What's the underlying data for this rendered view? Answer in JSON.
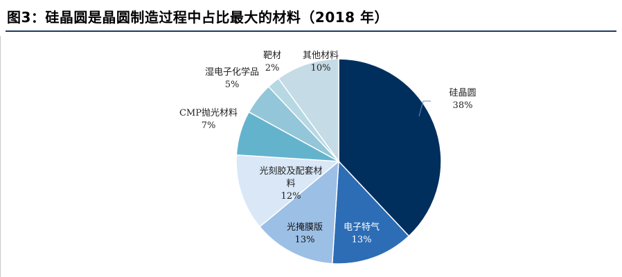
{
  "title": "图3：硅晶圆是晶圆制造过程中占比最大的材料（2018 年）",
  "chart_data": {
    "type": "pie",
    "title": "图3：硅晶圆是晶圆制造过程中占比最大的材料（2018 年）",
    "slices": [
      {
        "name": "硅晶圆",
        "value": 38,
        "label_lines": [
          "硅晶圆"
        ],
        "value_label": "38%",
        "color": "#002f5e",
        "text_color": "#222222"
      },
      {
        "name": "电子特气",
        "value": 13,
        "label_lines": [
          "电子特气"
        ],
        "value_label": "13%",
        "color": "#2d6db5",
        "text_color": "#ffffff"
      },
      {
        "name": "光掩膜版",
        "value": 13,
        "label_lines": [
          "光掩膜版"
        ],
        "value_label": "13%",
        "color": "#9cbfe6",
        "text_color": "#111111"
      },
      {
        "name": "光刻胶及配套材料",
        "value": 12,
        "label_lines": [
          "光刻胶及配套材",
          "料"
        ],
        "value_label": "12%",
        "color": "#d9e7f7",
        "text_color": "#222222"
      },
      {
        "name": "CMP抛光材料",
        "value": 7,
        "label_lines": [
          "CMP抛光材料"
        ],
        "value_label": "7%",
        "color": "#64b3cd",
        "text_color": "#222222"
      },
      {
        "name": "湿电子化学品",
        "value": 5,
        "label_lines": [
          "湿电子化学品"
        ],
        "value_label": "5%",
        "color": "#93c6d8",
        "text_color": "#222222"
      },
      {
        "name": "靶材",
        "value": 2,
        "label_lines": [
          "靶材"
        ],
        "value_label": "2%",
        "color": "#b6d8e3",
        "text_color": "#222222"
      },
      {
        "name": "其他材料",
        "value": 10,
        "label_lines": [
          "其他材料"
        ],
        "value_label": "10%",
        "color": "#c5dbe6",
        "text_color": "#222222"
      }
    ]
  }
}
